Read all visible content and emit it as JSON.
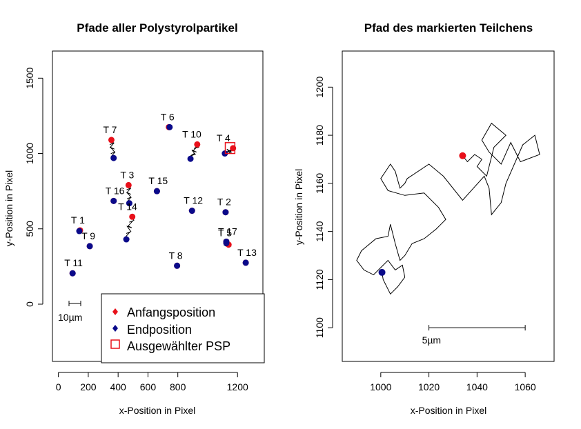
{
  "chart_data": [
    {
      "type": "scatter",
      "title": "Pfade aller Polystyrolpartikel",
      "xlabel": "x-Position in Pixel",
      "ylabel": "y-Position in Pixel",
      "xlim": [
        -40,
        1370
      ],
      "ylim": [
        -380,
        1680
      ],
      "x_ticks": [
        0,
        200,
        400,
        600,
        800,
        1200
      ],
      "y_ticks": [
        0,
        500,
        1000,
        1500
      ],
      "colors": {
        "start": "#e8101a",
        "end": "#0a0a8a",
        "selected": "#e8101a",
        "path": "#000000"
      },
      "particles": [
        {
          "label": "T 1",
          "start": [
            145,
            490
          ],
          "end": [
            140,
            485
          ]
        },
        {
          "label": "T 2",
          "start": [
            1120,
            610
          ],
          "end": [
            1120,
            610
          ]
        },
        {
          "label": "T 3",
          "start": [
            470,
            790
          ],
          "end": [
            475,
            670
          ]
        },
        {
          "label": "T 4",
          "start": [
            1170,
            1035
          ],
          "end": [
            1115,
            1000
          ]
        },
        {
          "label": "T 5",
          "start": [
            1140,
            395
          ],
          "end": [
            1125,
            405
          ]
        },
        {
          "label": "T 6",
          "start": [
            740,
            1175
          ],
          "end": [
            745,
            1175
          ]
        },
        {
          "label": "T 7",
          "start": [
            355,
            1090
          ],
          "end": [
            370,
            970
          ]
        },
        {
          "label": "T 8",
          "start": [
            795,
            255
          ],
          "end": [
            795,
            255
          ]
        },
        {
          "label": "T 9",
          "start": [
            210,
            385
          ],
          "end": [
            210,
            385
          ]
        },
        {
          "label": "T 10",
          "start": [
            930,
            1060
          ],
          "end": [
            885,
            965
          ]
        },
        {
          "label": "T 11",
          "start": [
            95,
            205
          ],
          "end": [
            95,
            205
          ]
        },
        {
          "label": "T 12",
          "start": [
            895,
            620
          ],
          "end": [
            895,
            620
          ]
        },
        {
          "label": "T 13",
          "start": [
            1255,
            275
          ],
          "end": [
            1255,
            275
          ]
        },
        {
          "label": "T 14",
          "start": [
            495,
            580
          ],
          "end": [
            455,
            430
          ]
        },
        {
          "label": "T 15",
          "start": [
            660,
            750
          ],
          "end": [
            660,
            750
          ]
        },
        {
          "label": "T 16",
          "start": [
            370,
            685
          ],
          "end": [
            370,
            685
          ]
        },
        {
          "label": "T 17",
          "start": [
            1125,
            415
          ],
          "end": [
            1125,
            415
          ]
        }
      ],
      "selected": {
        "x": [
          1118,
          1182
        ],
        "y": [
          1000,
          1072
        ]
      },
      "scale_bar_label": "10µm",
      "legend": {
        "placement": "bottom-right",
        "entries": [
          "Anfangsposition",
          "Endposition",
          "Ausgewählter PSP"
        ]
      }
    },
    {
      "type": "line",
      "title": "Pfad des markierten Teilchens",
      "xlabel": "x-Position in Pixel",
      "ylabel": "y-Position in Pixel",
      "xlim": [
        984,
        1072
      ],
      "ylim": [
        1086,
        1215
      ],
      "x_ticks": [
        1000,
        1020,
        1040,
        1060
      ],
      "y_ticks": [
        1100,
        1120,
        1140,
        1160,
        1180,
        1200
      ],
      "start": [
        1034,
        1171.5
      ],
      "end": [
        1000.5,
        1123
      ],
      "scale_bar_label": "5µm",
      "path": [
        [
          1034,
          1171.5
        ],
        [
          1036,
          1169
        ],
        [
          1039,
          1172
        ],
        [
          1042,
          1170
        ],
        [
          1040,
          1167
        ],
        [
          1044,
          1163
        ],
        [
          1047,
          1175
        ],
        [
          1052,
          1180
        ],
        [
          1046,
          1185
        ],
        [
          1042,
          1178
        ],
        [
          1045,
          1173
        ],
        [
          1050,
          1168
        ],
        [
          1054,
          1177
        ],
        [
          1058,
          1169
        ],
        [
          1066,
          1172
        ],
        [
          1064,
          1180
        ],
        [
          1059,
          1176
        ],
        [
          1052,
          1160
        ],
        [
          1050,
          1152
        ],
        [
          1046,
          1147
        ],
        [
          1045,
          1158
        ],
        [
          1043,
          1163
        ],
        [
          1034,
          1153
        ],
        [
          1026,
          1163
        ],
        [
          1020,
          1168
        ],
        [
          1011,
          1162
        ],
        [
          1010,
          1160
        ],
        [
          1008,
          1158
        ],
        [
          1006,
          1165
        ],
        [
          1004,
          1168
        ],
        [
          1000,
          1162
        ],
        [
          1003,
          1157
        ],
        [
          1010,
          1155
        ],
        [
          1018,
          1156
        ],
        [
          1024,
          1150
        ],
        [
          1027,
          1145
        ],
        [
          1023,
          1141
        ],
        [
          1018,
          1137
        ],
        [
          1013,
          1135
        ],
        [
          1010,
          1130
        ],
        [
          1008,
          1128
        ],
        [
          1006,
          1135
        ],
        [
          1004,
          1143
        ],
        [
          1003,
          1138
        ],
        [
          998,
          1137
        ],
        [
          992,
          1132
        ],
        [
          990,
          1128
        ],
        [
          993,
          1124
        ],
        [
          997,
          1122
        ],
        [
          1000,
          1125
        ],
        [
          1003,
          1128
        ],
        [
          1006,
          1124
        ],
        [
          1009,
          1126
        ],
        [
          1010,
          1121
        ],
        [
          1007,
          1117
        ],
        [
          1004,
          1114
        ],
        [
          1001,
          1120
        ],
        [
          1000.5,
          1123
        ]
      ]
    }
  ]
}
